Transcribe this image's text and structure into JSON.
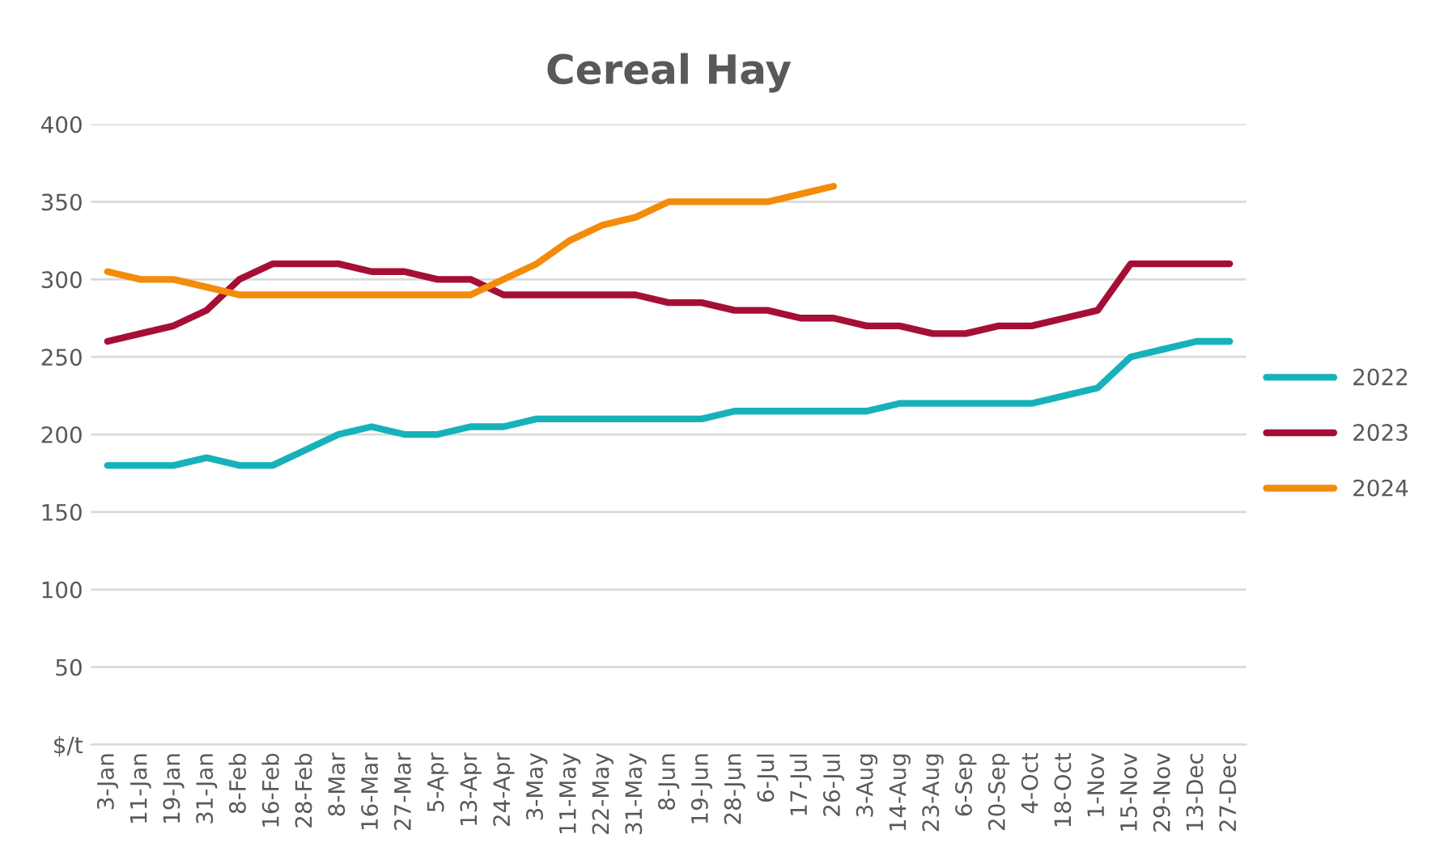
{
  "chart_data": {
    "type": "line",
    "title": "Cereal Hay",
    "categories": [
      "3-Jan",
      "11-Jan",
      "19-Jan",
      "31-Jan",
      "8-Feb",
      "16-Feb",
      "28-Feb",
      "8-Mar",
      "16-Mar",
      "27-Mar",
      "5-Apr",
      "13-Apr",
      "24-Apr",
      "3-May",
      "11-May",
      "22-May",
      "31-May",
      "8-Jun",
      "19-Jun",
      "28-Jun",
      "6-Jul",
      "17-Jul",
      "26-Jul",
      "3-Aug",
      "14-Aug",
      "23-Aug",
      "6-Sep",
      "20-Sep",
      "4-Oct",
      "18-Oct",
      "1-Nov",
      "15-Nov",
      "29-Nov",
      "13-Dec",
      "27-Dec"
    ],
    "ylim": [
      0,
      400
    ],
    "yticks": [
      {
        "value": 0,
        "label": "$/t"
      },
      50,
      100,
      150,
      200,
      250,
      300,
      350,
      400
    ],
    "grid": "y",
    "legend": "right",
    "marker": "none",
    "line_style": "solid",
    "series": [
      {
        "name": "2022",
        "color": "#17b2b9",
        "values": [
          180,
          180,
          180,
          185,
          180,
          180,
          190,
          200,
          205,
          200,
          200,
          205,
          205,
          210,
          210,
          210,
          210,
          210,
          210,
          215,
          215,
          215,
          215,
          215,
          220,
          220,
          220,
          220,
          220,
          225,
          230,
          250,
          255,
          260,
          260
        ]
      },
      {
        "name": "2023",
        "color": "#a50f35",
        "values": [
          260,
          265,
          270,
          280,
          300,
          310,
          310,
          310,
          305,
          305,
          300,
          300,
          290,
          290,
          290,
          290,
          290,
          285,
          285,
          280,
          280,
          275,
          275,
          270,
          270,
          265,
          265,
          270,
          270,
          275,
          280,
          310,
          310,
          310,
          310
        ]
      },
      {
        "name": "2024",
        "color": "#f28c0a",
        "values": [
          305,
          300,
          300,
          295,
          290,
          290,
          290,
          290,
          290,
          290,
          290,
          290,
          300,
          310,
          325,
          335,
          340,
          350,
          350,
          350,
          350,
          355,
          360,
          null,
          null,
          null,
          null,
          null,
          null,
          null,
          null,
          null,
          null,
          null,
          null
        ]
      }
    ]
  }
}
